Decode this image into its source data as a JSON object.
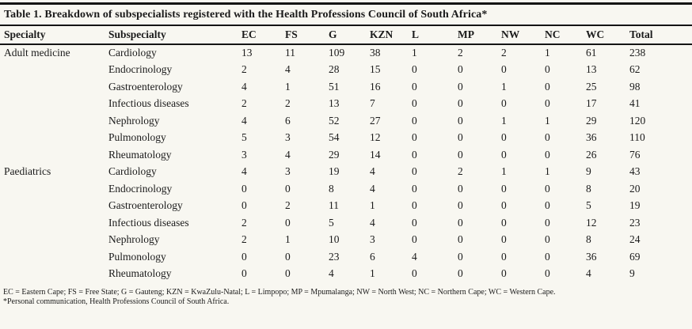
{
  "title": "Table 1. Breakdown of subspecialists registered with the Health Professions Council of South Africa*",
  "colors": {
    "background": "#f8f7f1",
    "ink": "#1b1b1b",
    "rule": "#141414"
  },
  "table": {
    "columns": [
      "Specialty",
      "Subspecialty",
      "EC",
      "FS",
      "G",
      "KZN",
      "L",
      "MP",
      "NW",
      "NC",
      "WC",
      "Total"
    ],
    "rows": [
      {
        "specialty": "Adult medicine",
        "subspecialty": "Cardiology",
        "values": [
          "13",
          "11",
          "109",
          "38",
          "1",
          "2",
          "2",
          "1",
          "61",
          "238"
        ]
      },
      {
        "specialty": "",
        "subspecialty": "Endocrinology",
        "values": [
          "2",
          "4",
          "28",
          "15",
          "0",
          "0",
          "0",
          "0",
          "13",
          "62"
        ]
      },
      {
        "specialty": "",
        "subspecialty": "Gastroenterology",
        "values": [
          "4",
          "1",
          "51",
          "16",
          "0",
          "0",
          "1",
          "0",
          "25",
          "98"
        ]
      },
      {
        "specialty": "",
        "subspecialty": "Infectious diseases",
        "values": [
          "2",
          "2",
          "13",
          "7",
          "0",
          "0",
          "0",
          "0",
          "17",
          "41"
        ]
      },
      {
        "specialty": "",
        "subspecialty": "Nephrology",
        "values": [
          "4",
          "6",
          "52",
          "27",
          "0",
          "0",
          "1",
          "1",
          "29",
          "120"
        ]
      },
      {
        "specialty": "",
        "subspecialty": "Pulmonology",
        "values": [
          "5",
          "3",
          "54",
          "12",
          "0",
          "0",
          "0",
          "0",
          "36",
          "110"
        ]
      },
      {
        "specialty": "",
        "subspecialty": "Rheumatology",
        "values": [
          "3",
          "4",
          "29",
          "14",
          "0",
          "0",
          "0",
          "0",
          "26",
          "76"
        ]
      },
      {
        "specialty": "Paediatrics",
        "subspecialty": "Cardiology",
        "values": [
          "4",
          "3",
          "19",
          "4",
          "0",
          "2",
          "1",
          "1",
          "9",
          "43"
        ]
      },
      {
        "specialty": "",
        "subspecialty": "Endocrinology",
        "values": [
          "0",
          "0",
          "8",
          "4",
          "0",
          "0",
          "0",
          "0",
          "8",
          "20"
        ]
      },
      {
        "specialty": "",
        "subspecialty": "Gastroenterology",
        "values": [
          "0",
          "2",
          "11",
          "1",
          "0",
          "0",
          "0",
          "0",
          "5",
          "19"
        ]
      },
      {
        "specialty": "",
        "subspecialty": "Infectious diseases",
        "values": [
          "2",
          "0",
          "5",
          "4",
          "0",
          "0",
          "0",
          "0",
          "12",
          "23"
        ]
      },
      {
        "specialty": "",
        "subspecialty": "Nephrology",
        "values": [
          "2",
          "1",
          "10",
          "3",
          "0",
          "0",
          "0",
          "0",
          "8",
          "24"
        ]
      },
      {
        "specialty": "",
        "subspecialty": "Pulmonology",
        "values": [
          "0",
          "0",
          "23",
          "6",
          "4",
          "0",
          "0",
          "0",
          "36",
          "69"
        ]
      },
      {
        "specialty": "",
        "subspecialty": "Rheumatology",
        "values": [
          "0",
          "0",
          "4",
          "1",
          "0",
          "0",
          "0",
          "0",
          "4",
          "9"
        ]
      }
    ]
  },
  "footnotes": [
    "EC = Eastern Cape; FS = Free State; G = Gauteng; KZN = KwaZulu-Natal; L = Limpopo; MP = Mpumalanga; NW = North West; NC = Northern Cape; WC = Western Cape.",
    "*Personal communication, Health Professions Council of South Africa."
  ]
}
